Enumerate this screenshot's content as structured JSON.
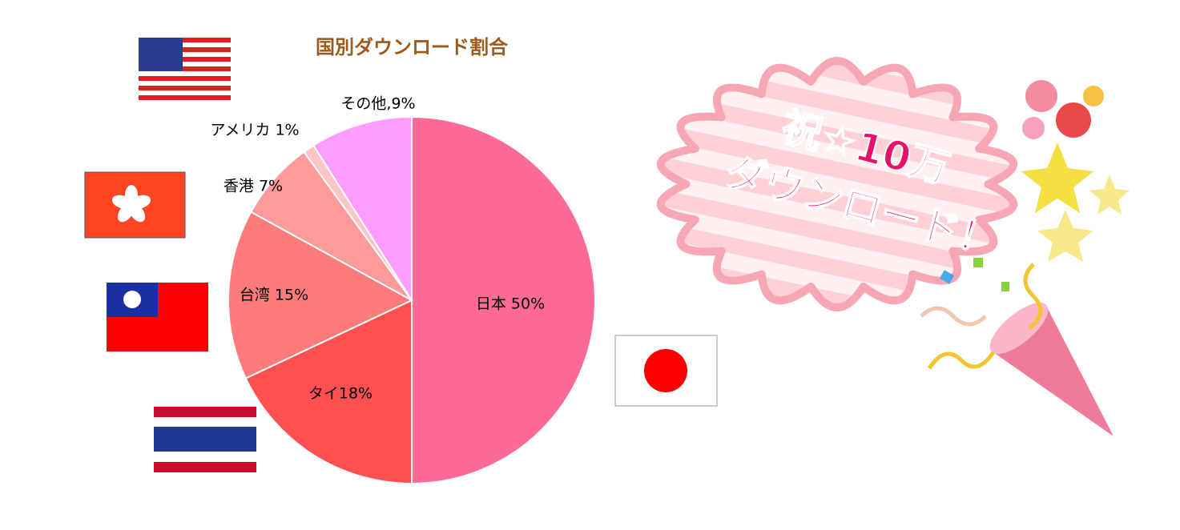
{
  "chart_data": {
    "type": "pie",
    "title": "国別ダウンロード割合",
    "categories": [
      "日本",
      "タイ",
      "台湾",
      "香港",
      "アメリカ",
      "その他"
    ],
    "values": [
      50,
      18,
      15,
      7,
      1,
      9
    ],
    "value_labels": [
      "日本 50%",
      "タイ18%",
      "台湾 15%",
      "香港 7%",
      "アメリカ 1%",
      "その他,9%"
    ],
    "colors": [
      "#fe6a96",
      "#fe5050",
      "#fe7b7b",
      "#fe9a9a",
      "#ffc4c4",
      "#ff9cff"
    ],
    "annotations": [
      "祝☆10万",
      "ダウンロード！"
    ]
  }
}
